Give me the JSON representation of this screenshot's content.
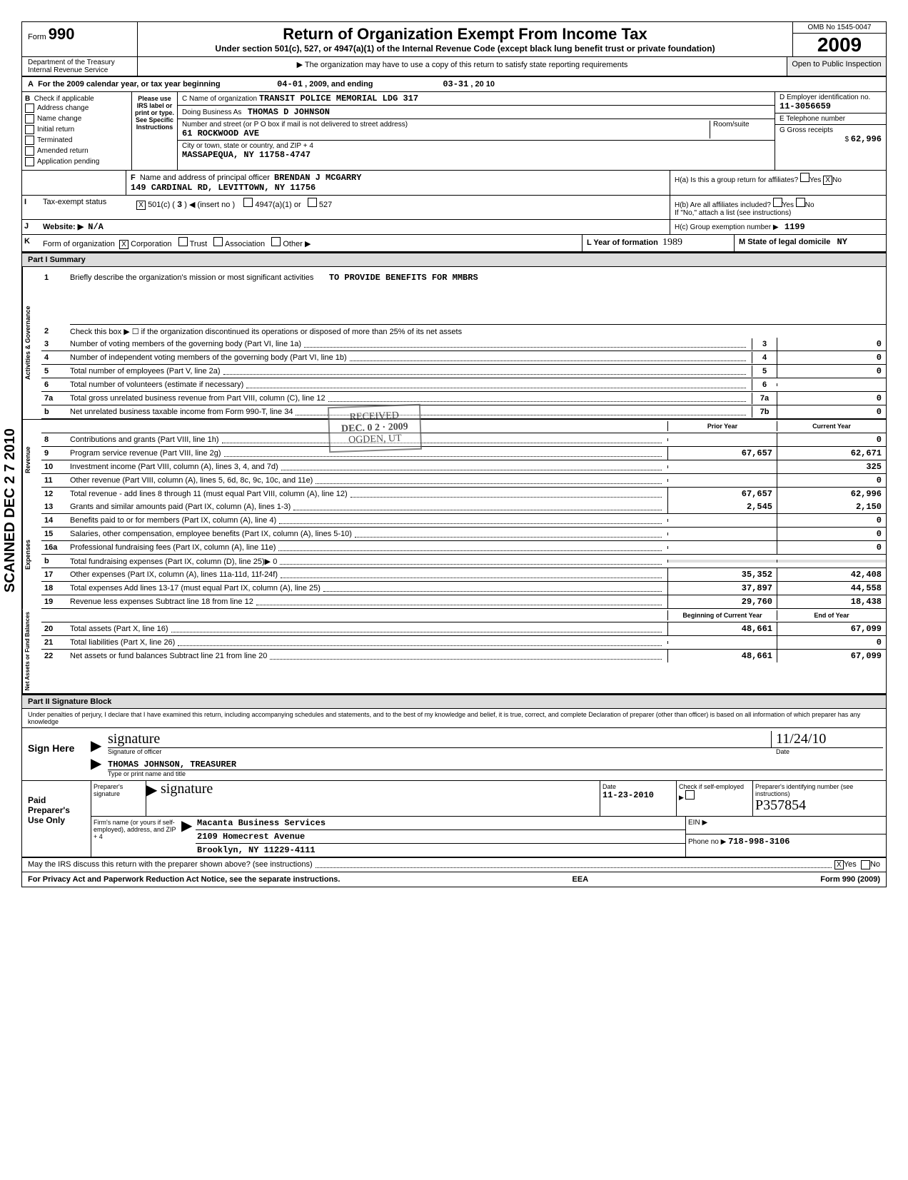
{
  "header": {
    "form_label": "Form",
    "form_number": "990",
    "main_title": "Return of Organization Exempt From Income Tax",
    "sub_title": "Under section 501(c), 527, or 4947(a)(1) of the Internal Revenue Code (except black lung benefit trust or private foundation)",
    "notice": "▶ The organization may have to use a copy of this return to satisfy state reporting requirements",
    "omb": "OMB No 1545-0047",
    "year": "2009",
    "open": "Open to Public Inspection",
    "dept1": "Department of the Treasury",
    "dept2": "Internal Revenue Service"
  },
  "row_a": {
    "label": "A",
    "text": "For the 2009 calendar year, or tax year beginning",
    "begin": "04-01",
    "mid": ", 2009, and ending",
    "end": "03-31",
    "end2": ", 20 10"
  },
  "section_b": {
    "label": "B",
    "check_label": "Check if applicable",
    "addr_change": "Address change",
    "name_change": "Name change",
    "initial": "Initial return",
    "terminated": "Terminated",
    "amended": "Amended return",
    "pending": "Application pending",
    "please": "Please use IRS label or print or type. See Specific Instructions"
  },
  "section_c": {
    "name_label": "C Name of organization",
    "name": "TRANSIT POLICE MEMORIAL LDG 317",
    "dba_label": "Doing Business As",
    "dba": "THOMAS D JOHNSON",
    "street_label": "Number and street (or P O box if mail is not delivered to street address)",
    "street": "61 ROCKWOOD AVE",
    "room_label": "Room/suite",
    "city_label": "City or town, state or country, and ZIP + 4",
    "city": "MASSAPEQUA, NY 11758-4747"
  },
  "section_d": {
    "label": "D Employer identification no.",
    "ein": "11-3056659",
    "e_label": "E Telephone number",
    "g_label": "G Gross receipts",
    "g_val": "62,996"
  },
  "section_f": {
    "label": "F",
    "text": "Name and address of principal officer",
    "name": "BRENDAN J MCGARRY",
    "addr": "149 CARDINAL RD, LEVITTOWN, NY 11756"
  },
  "section_h": {
    "ha": "H(a) Is this a group return for affiliates?",
    "hb": "H(b) Are all affiliates included?",
    "hb2": "If \"No,\" attach a list (see instructions)",
    "hc": "H(c) Group exemption number ▶",
    "hc_val": "1199",
    "yes": "Yes",
    "no": "No"
  },
  "section_i": {
    "label": "I",
    "text": "Tax-exempt status",
    "c501": "501(c) (",
    "c501_num": "3",
    "c501_end": ") ◀ (insert no )",
    "opt2": "4947(a)(1) or",
    "opt3": "527"
  },
  "section_j": {
    "label": "J",
    "text": "Website: ▶",
    "val": "N/A"
  },
  "section_k": {
    "label": "K",
    "text": "Form of organization",
    "corp": "Corporation",
    "trust": "Trust",
    "assoc": "Association",
    "other": "Other ▶",
    "l_label": "L Year of formation",
    "l_val": "1989",
    "m_label": "M State of legal domicile",
    "m_val": "NY"
  },
  "part1": {
    "header": "Part I    Summary",
    "line1_num": "1",
    "line1": "Briefly describe the organization's mission or most significant activities",
    "line1_val": "TO PROVIDE BENEFITS FOR MMBRS",
    "line2_num": "2",
    "line2": "Check this box ▶ ☐ if the organization discontinued its operations or disposed of more than 25% of its net assets",
    "side1": "Activities & Governance",
    "side2": "Revenue",
    "side3": "Expenses",
    "side4": "Net Assets or Fund Balances",
    "prior": "Prior Year",
    "current": "Current Year",
    "begin": "Beginning of Current Year",
    "endyr": "End of Year",
    "lines": [
      {
        "n": "3",
        "t": "Number of voting members of the governing body (Part VI, line 1a)",
        "b": "3",
        "v2": "0"
      },
      {
        "n": "4",
        "t": "Number of independent voting members of the governing body (Part VI, line 1b)",
        "b": "4",
        "v2": "0"
      },
      {
        "n": "5",
        "t": "Total number of employees (Part V, line 2a)",
        "b": "5",
        "v2": "0"
      },
      {
        "n": "6",
        "t": "Total number of volunteers (estimate if necessary)",
        "b": "6",
        "v2": ""
      },
      {
        "n": "7a",
        "t": "Total gross unrelated business revenue from Part VIII, column (C), line 12",
        "b": "7a",
        "v2": "0"
      },
      {
        "n": "b",
        "t": "Net unrelated business taxable income from Form 990-T, line 34",
        "b": "7b",
        "v2": "0"
      }
    ],
    "revlines": [
      {
        "n": "8",
        "t": "Contributions and grants (Part VIII, line 1h)",
        "v1": "",
        "v2": "0"
      },
      {
        "n": "9",
        "t": "Program service revenue (Part VIII, line 2g)",
        "v1": "67,657",
        "v2": "62,671"
      },
      {
        "n": "10",
        "t": "Investment income (Part VIII, column (A), lines 3, 4, and 7d)",
        "v1": "",
        "v2": "325"
      },
      {
        "n": "11",
        "t": "Other revenue (Part VIII, column (A), lines 5, 6d, 8c, 9c, 10c, and 11e)",
        "v1": "",
        "v2": "0"
      },
      {
        "n": "12",
        "t": "Total revenue - add lines 8 through 11 (must equal Part VIII, column (A), line 12)",
        "v1": "67,657",
        "v2": "62,996"
      }
    ],
    "explines": [
      {
        "n": "13",
        "t": "Grants and similar amounts paid (Part IX, column (A), lines 1-3)",
        "v1": "2,545",
        "v2": "2,150"
      },
      {
        "n": "14",
        "t": "Benefits paid to or for members (Part IX, column (A), line 4)",
        "v1": "",
        "v2": "0"
      },
      {
        "n": "15",
        "t": "Salaries, other compensation, employee benefits (Part IX, column (A), lines 5-10)",
        "v1": "",
        "v2": "0"
      },
      {
        "n": "16a",
        "t": "Professional fundraising fees (Part IX, column (A), line 11e)",
        "v1": "",
        "v2": "0"
      },
      {
        "n": "b",
        "t": "Total fundraising expenses (Part IX, column (D), line 25)▶              0",
        "v1": "",
        "v2": ""
      },
      {
        "n": "17",
        "t": "Other expenses (Part IX, column (A), lines 11a-11d, 11f-24f)",
        "v1": "35,352",
        "v2": "42,408"
      },
      {
        "n": "18",
        "t": "Total expenses  Add lines 13-17 (must equal Part IX, column (A), line 25)",
        "v1": "37,897",
        "v2": "44,558"
      },
      {
        "n": "19",
        "t": "Revenue less expenses  Subtract line 18 from line 12",
        "v1": "29,760",
        "v2": "18,438"
      }
    ],
    "netlines": [
      {
        "n": "20",
        "t": "Total assets (Part X, line 16)",
        "v1": "48,661",
        "v2": "67,099"
      },
      {
        "n": "21",
        "t": "Total liabilities (Part X, line 26)",
        "v1": "",
        "v2": "0"
      },
      {
        "n": "22",
        "t": "Net assets or fund balances  Subtract line 21 from line 20",
        "v1": "48,661",
        "v2": "67,099"
      }
    ]
  },
  "part2": {
    "header": "Part II    Signature Block",
    "perjury": "Under penalties of perjury, I declare that I have examined this return, including accompanying schedules and statements, and to the best of my knowledge and belief, it is true, correct, and complete  Declaration of preparer (other than officer) is based on all information of which preparer has any knowledge",
    "sign": "Sign Here",
    "sig_officer": "Signature of officer",
    "date": "Date",
    "date_val": "11/24/10",
    "name": "THOMAS JOHNSON, TREASURER",
    "type_name": "Type or print name and title",
    "paid": "Paid Preparer's Use Only",
    "prep_sig": "Preparer's signature",
    "prep_date": "Date",
    "prep_date_val": "11-23-2010",
    "self": "Check if self-employed ▶",
    "pin": "Preparer's identifying number (see instructions)",
    "firm": "Firm's name (or yours if self-employed), address, and ZIP + 4",
    "firm_name": "Macanta Business Services",
    "firm_addr": "2109 Homecrest Avenue",
    "firm_city": "Brooklyn, NY 11229-4111",
    "ein": "EIN",
    "phone": "Phone no",
    "phone_val": "718-998-3106",
    "discuss": "May the IRS discuss this return with the preparer shown above? (see instructions)",
    "yes": "Yes",
    "no": "No"
  },
  "footer": {
    "privacy": "For Privacy Act and Paperwork Reduction Act Notice, see the separate instructions.",
    "eea": "EEA",
    "form": "Form 990 (2009)"
  },
  "stamp": {
    "received": "RECEIVED",
    "date": "DEC. 0 2 · 2009",
    "ogden": "OGDEN, UT"
  },
  "scanned": "SCANNED DEC 2 7 2010"
}
